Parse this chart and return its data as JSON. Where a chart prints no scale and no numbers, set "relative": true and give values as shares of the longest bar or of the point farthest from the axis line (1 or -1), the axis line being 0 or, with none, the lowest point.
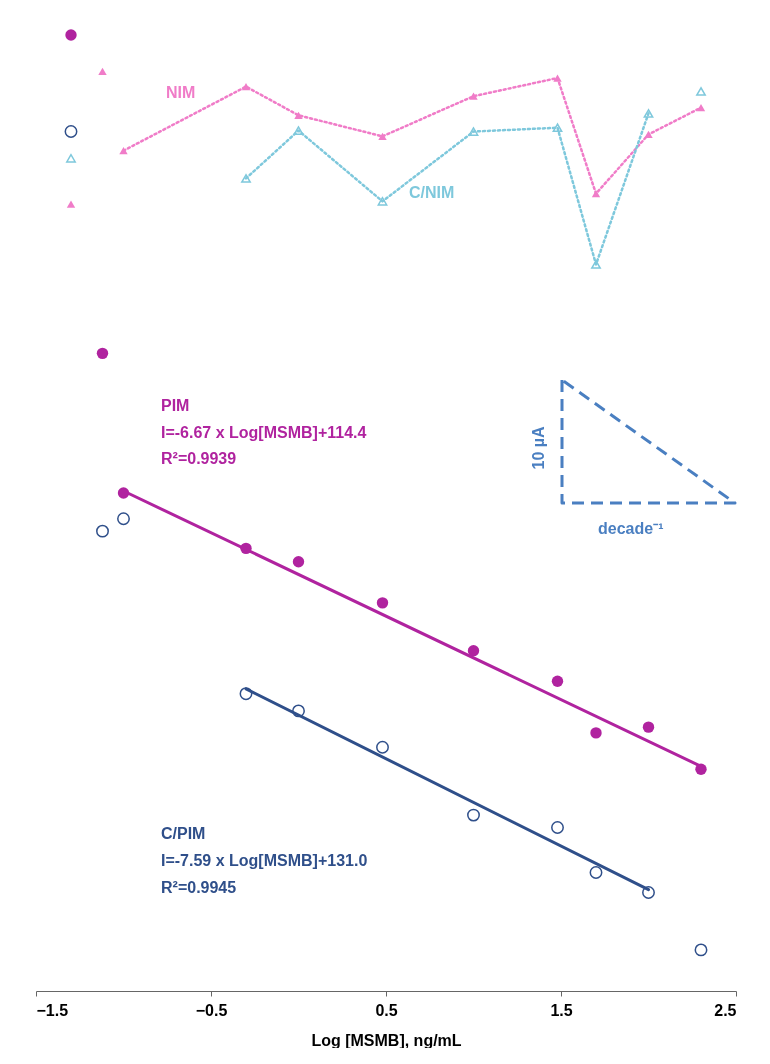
{
  "chart_data": {
    "type": "scatter",
    "relative": true,
    "xlabel": "Log [MSMB], ng/mL",
    "xlim": [
      -1.5,
      2.5
    ],
    "xticks": [
      -1.5,
      -0.5,
      0.5,
      1.5,
      2.5
    ],
    "tick_labels": "x",
    "grid": false,
    "x": [
      -1.3,
      -1.12,
      -1,
      -0.3,
      0,
      0.48,
      1,
      1.48,
      1.7,
      2,
      2.3
    ],
    "series": [
      {
        "type": "line",
        "color": "#b0239f",
        "marker": "none",
        "line_style": "solid",
        "x": [
          -1,
          2.3
        ],
        "values": [
          0.523,
          0.235
        ]
      },
      {
        "type": "line",
        "color": "#2f4f8a",
        "marker": "none",
        "line_style": "solid",
        "x": [
          -0.3,
          2
        ],
        "values": [
          0.316,
          0.106
        ]
      },
      {
        "type": "line",
        "color": "#f07cc8",
        "marker": "none",
        "line_style": "dotted",
        "x": [
          -1,
          -0.3,
          0,
          0.48,
          1,
          1.48,
          1.7,
          2,
          2.3
        ],
        "values": [
          0.879,
          0.946,
          0.916,
          0.894,
          0.936,
          0.955,
          0.834,
          0.896,
          0.924
        ]
      },
      {
        "type": "line",
        "color": "#7ec8dc",
        "marker": "none",
        "line_style": "dotted",
        "x": [
          -0.3,
          0,
          0.48,
          1,
          1.48,
          1.7,
          2
        ],
        "values": [
          0.85,
          0.9,
          0.826,
          0.899,
          0.903,
          0.76,
          0.918
        ]
      },
      {
        "name": "PIM",
        "color": "#b0239f",
        "marker": "circle",
        "values": [
          1.0,
          0.667,
          0.521,
          0.463,
          0.449,
          0.406,
          0.356,
          0.324,
          0.27,
          0.276,
          0.232
        ]
      },
      {
        "name": "C/PIM",
        "color": "#2f4f8a",
        "marker": "circle",
        "values": [
          0.899,
          0.481,
          0.494,
          0.311,
          0.293,
          0.255,
          0.184,
          0.171,
          0.124,
          0.103,
          0.043
        ]
      },
      {
        "name": "NIM",
        "color": "#f07cc8",
        "marker": "triangle",
        "values": [
          0.823,
          0.962,
          0.879,
          0.946,
          0.916,
          0.894,
          0.936,
          0.955,
          0.834,
          0.896,
          0.924
        ]
      },
      {
        "name": "C/NIM",
        "color": "#7ec8dc",
        "marker": "triangle",
        "values": [
          0.871,
          null,
          null,
          0.85,
          0.9,
          0.826,
          0.899,
          0.903,
          0.76,
          0.918,
          0.941
        ]
      }
    ],
    "annotations": [
      "I=-6.67 x Log[MSMB]+114.4",
      "R²=0.9939",
      "I=-7.59 x Log[MSMB]+131.0",
      "R²=0.9945",
      "10 µA",
      "decade⁻¹"
    ]
  }
}
